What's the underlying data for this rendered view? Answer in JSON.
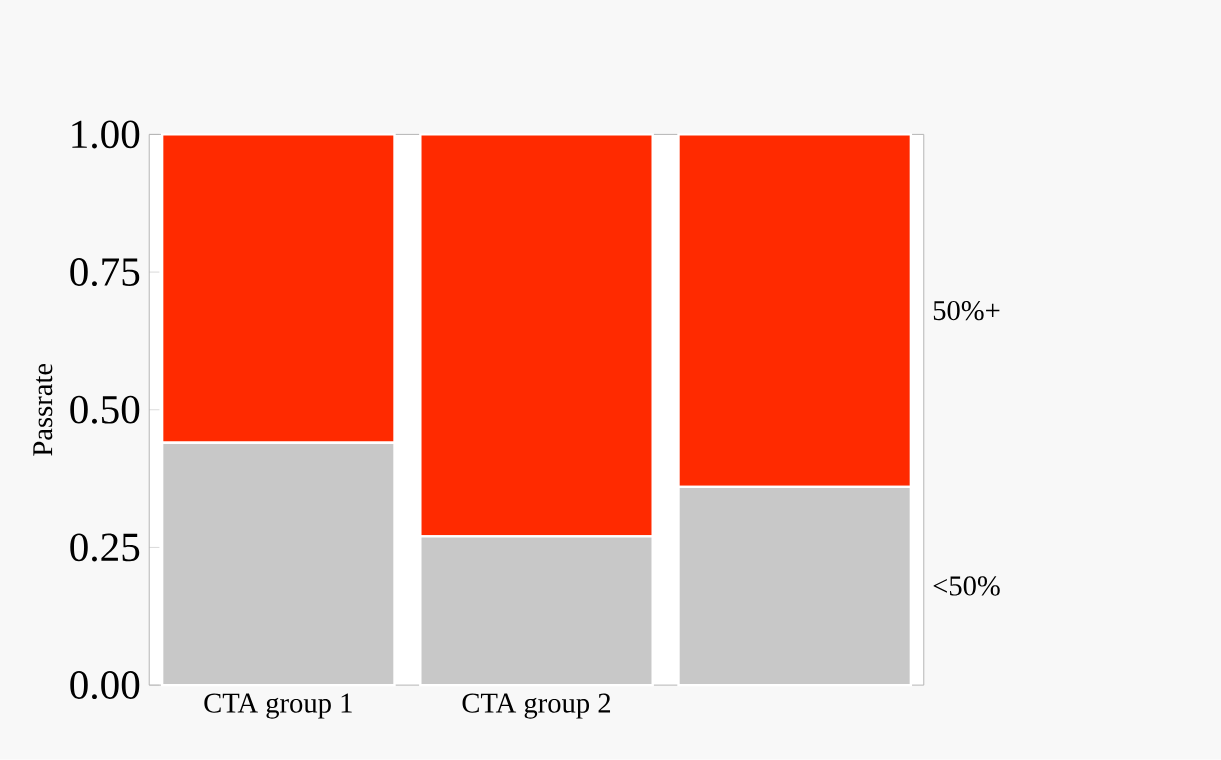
{
  "chart_data": {
    "type": "bar",
    "stacked": true,
    "ylabel": "Passrate",
    "categories": [
      "CTA group 1",
      "CTA group 2",
      null
    ],
    "series": [
      {
        "name": "<50%",
        "color": "#c8c8c8",
        "values": [
          0.44,
          0.27,
          0.36
        ]
      },
      {
        "name": "50%+",
        "color": "#ff2a00",
        "values": [
          0.56,
          0.73,
          0.64
        ]
      }
    ],
    "ylim": [
      0,
      1
    ],
    "yticks": [
      {
        "value": 0,
        "label": "0.00"
      },
      {
        "value": 0.25,
        "label": "0.25"
      },
      {
        "value": 0.5,
        "label": "0.50"
      },
      {
        "value": 0.75,
        "label": "0.75"
      },
      {
        "value": 1,
        "label": "1.00"
      }
    ],
    "legend": "right",
    "grid": false
  }
}
